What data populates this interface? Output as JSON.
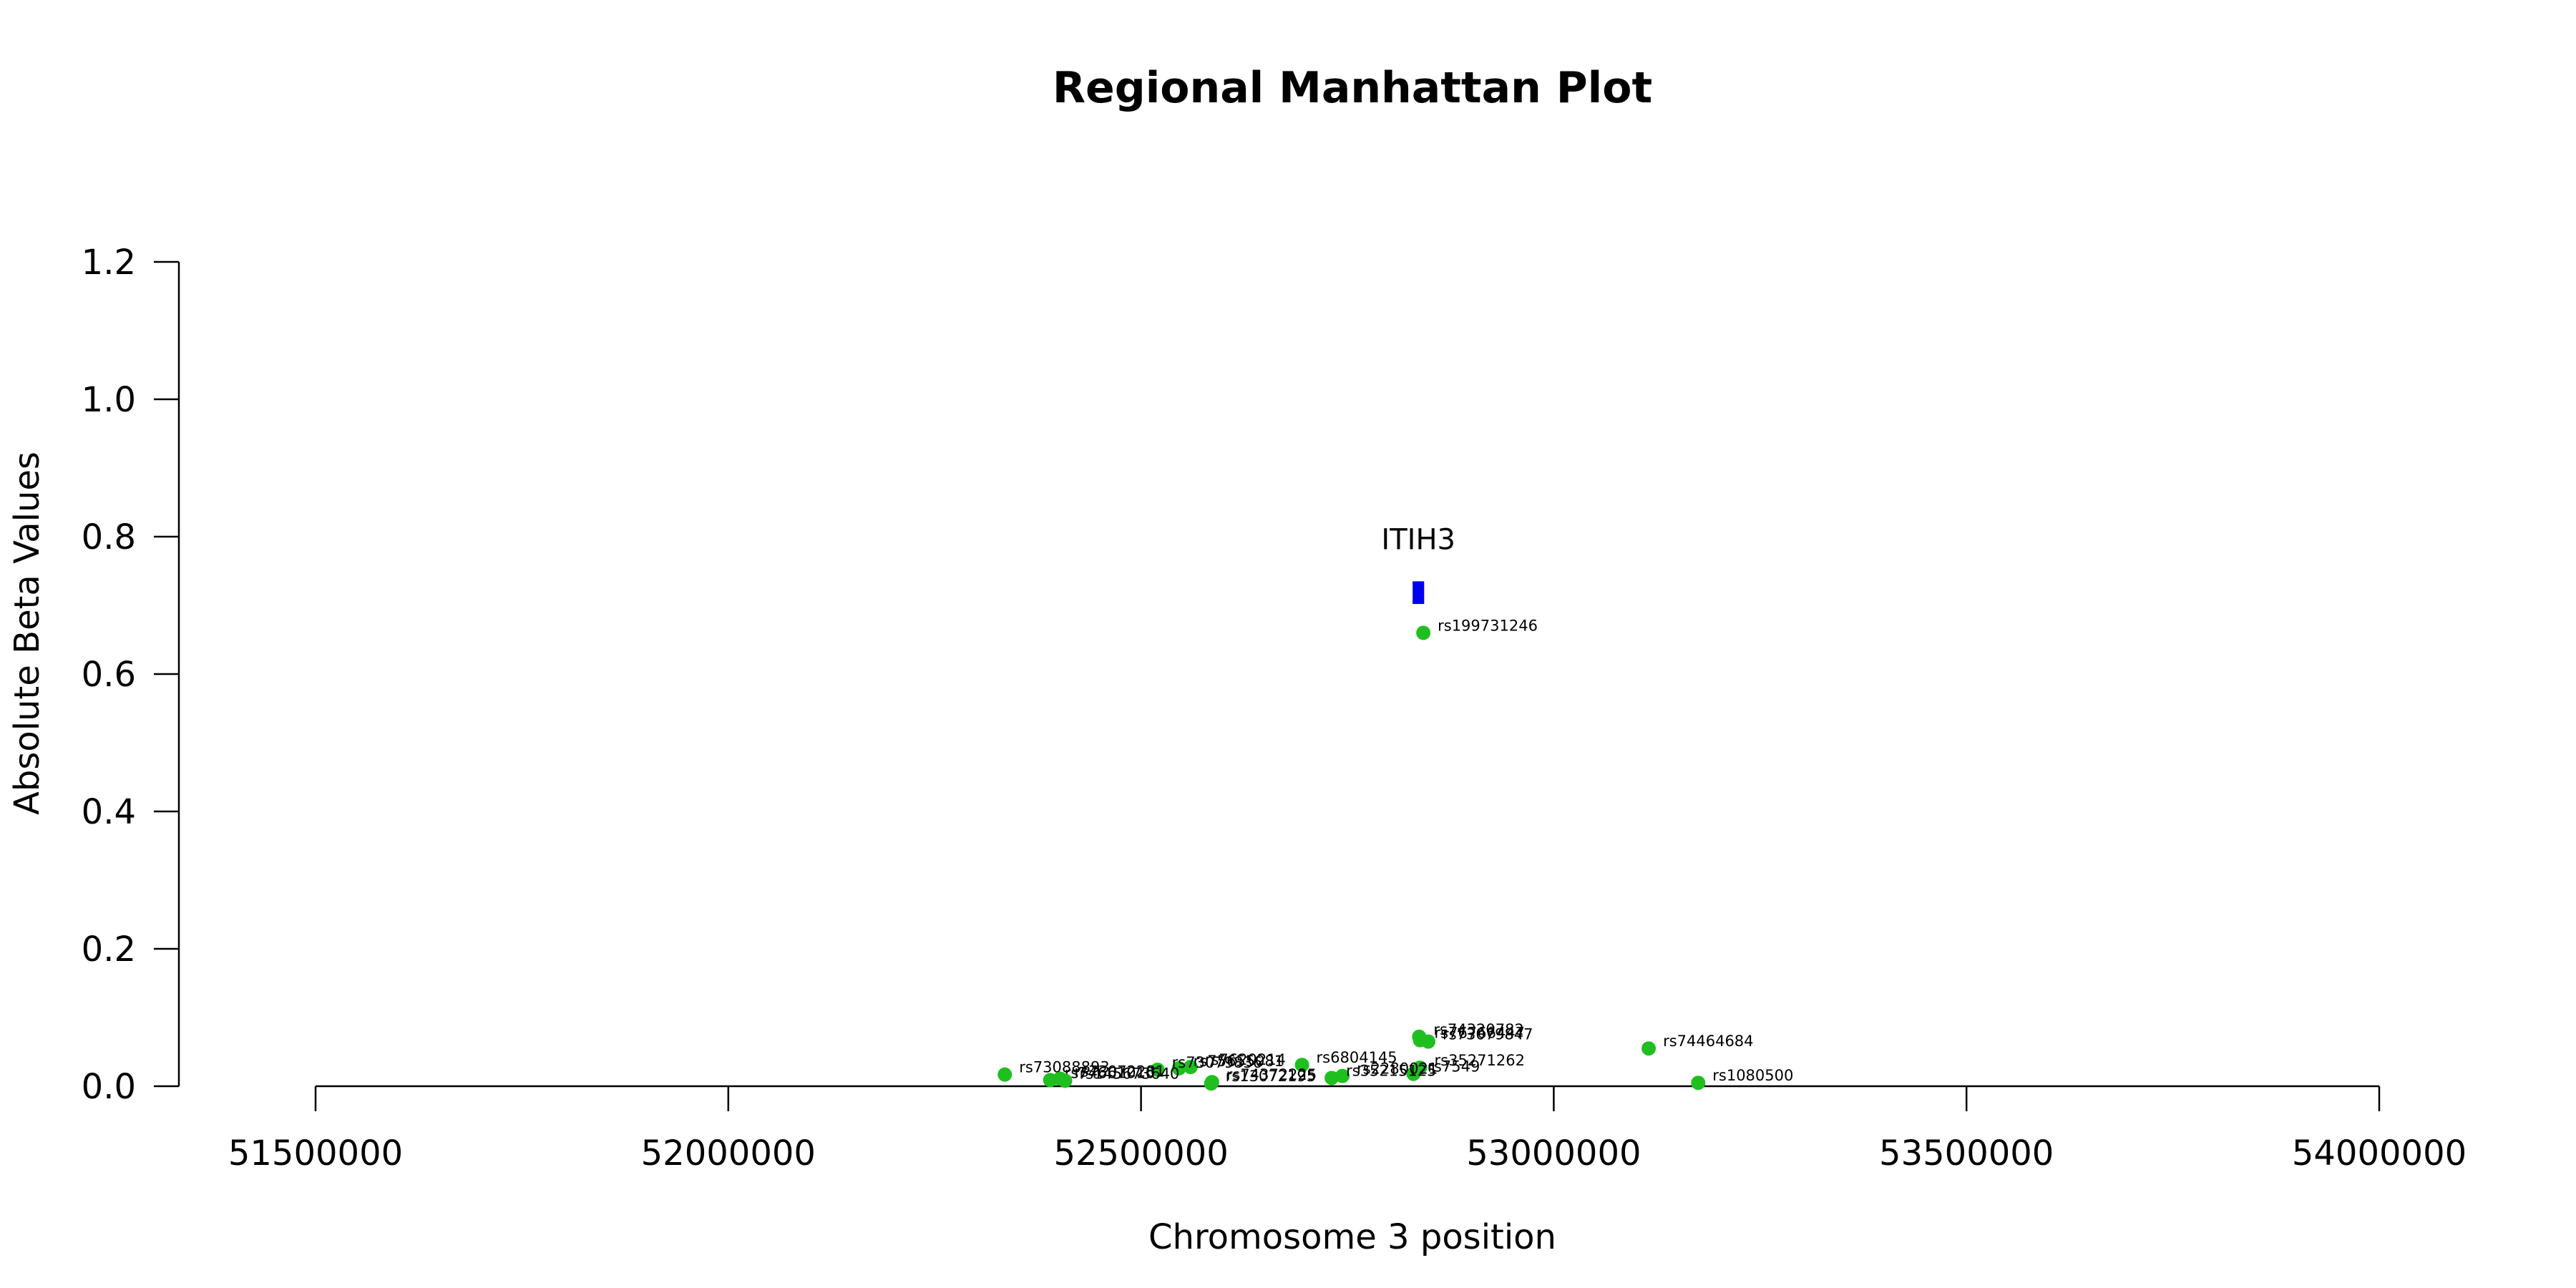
{
  "chart_data": {
    "type": "scatter",
    "title": "Regional Manhattan Plot",
    "xlabel": "Chromosome 3 position",
    "ylabel": "Absolute Beta Values",
    "xlim": [
      51500000,
      54000000
    ],
    "ylim": [
      0,
      1.2
    ],
    "x_ticks": [
      51500000,
      52000000,
      52500000,
      53000000,
      53500000,
      54000000
    ],
    "x_tick_labels": [
      "51500000",
      "52000000",
      "52500000",
      "53000000",
      "53500000",
      "54000000"
    ],
    "y_ticks": [
      0,
      0.2,
      0.4,
      0.6,
      0.8,
      1.0,
      1.2
    ],
    "y_tick_labels": [
      "0.0",
      "0.2",
      "0.4",
      "0.6",
      "0.8",
      "1.0",
      "1.2"
    ],
    "grid": false,
    "point_color": "#1fbf1f",
    "gene_color": "#0000ee",
    "gene": {
      "name": "ITIH3",
      "start": 52829000,
      "end": 52843000,
      "beta_low": 0.702,
      "beta_high": 0.735
    },
    "points": [
      {
        "label": "rs199731246",
        "x": 52842000,
        "y": 0.66
      },
      {
        "label": "rs74320782",
        "x": 52837000,
        "y": 0.072
      },
      {
        "label": "rs76766447",
        "x": 52838000,
        "y": 0.067
      },
      {
        "label": "rs73079847",
        "x": 52848000,
        "y": 0.065
      },
      {
        "label": "rs74464684",
        "x": 53115000,
        "y": 0.055
      },
      {
        "label": "rs6804145",
        "x": 52695000,
        "y": 0.031
      },
      {
        "label": "rs7620214",
        "x": 52560000,
        "y": 0.028
      },
      {
        "label": "rs75655081",
        "x": 52546000,
        "y": 0.026
      },
      {
        "label": "rs73079836",
        "x": 52520000,
        "y": 0.024
      },
      {
        "label": "rs73088893",
        "x": 52335000,
        "y": 0.017
      },
      {
        "label": "rs73072281",
        "x": 52402000,
        "y": 0.011
      },
      {
        "label": "rs74661010",
        "x": 52390000,
        "y": 0.009
      },
      {
        "label": "rs145673640",
        "x": 52408000,
        "y": 0.008
      },
      {
        "label": "rs35271262",
        "x": 52838000,
        "y": 0.027
      },
      {
        "label": "rs7549",
        "x": 52830000,
        "y": 0.018
      },
      {
        "label": "rs2280021",
        "x": 52744000,
        "y": 0.015
      },
      {
        "label": "rs35215125",
        "x": 52731000,
        "y": 0.012
      },
      {
        "label": "rs74372225",
        "x": 52586000,
        "y": 0.006
      },
      {
        "label": "rs13072195",
        "x": 52585000,
        "y": 0.004
      },
      {
        "label": "rs1080500",
        "x": 53175000,
        "y": 0.005
      }
    ]
  }
}
